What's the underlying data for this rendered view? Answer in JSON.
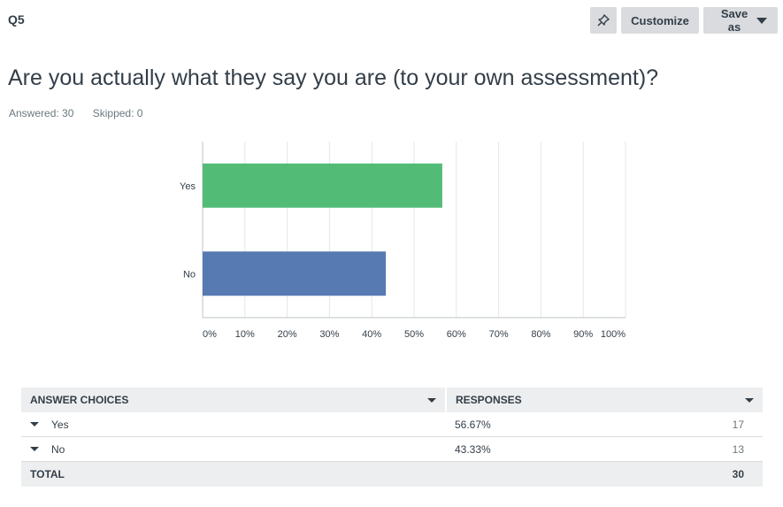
{
  "question": {
    "number": "Q5",
    "title": "Are you actually what they say you are (to your own assessment)?",
    "answered": "Answered: 30",
    "skipped": "Skipped: 0"
  },
  "toolbar": {
    "pin_icon": "pin-icon",
    "customize_label": "Customize",
    "save_as_label": "Save as"
  },
  "colors": {
    "yes_bar": "#52bc77",
    "no_bar": "#577ab2",
    "header_bg": "#edeeef",
    "button_bg": "#d9dbde"
  },
  "chart_data": {
    "type": "bar",
    "orientation": "horizontal",
    "categories": [
      "Yes",
      "No"
    ],
    "values": [
      56.67,
      43.33
    ],
    "bar_colors": [
      "#52bc77",
      "#577ab2"
    ],
    "x_ticks": [
      "0%",
      "10%",
      "20%",
      "30%",
      "40%",
      "50%",
      "60%",
      "70%",
      "80%",
      "90%",
      "100%"
    ],
    "xlim": [
      0,
      100
    ],
    "grid": true,
    "title": "",
    "xlabel": "",
    "ylabel": ""
  },
  "table": {
    "headers": [
      "ANSWER CHOICES",
      "RESPONSES"
    ],
    "rows": [
      {
        "choice": "Yes",
        "percent": "56.67%",
        "count": "17"
      },
      {
        "choice": "No",
        "percent": "43.33%",
        "count": "13"
      }
    ],
    "total_label": "TOTAL",
    "total_count": "30"
  }
}
